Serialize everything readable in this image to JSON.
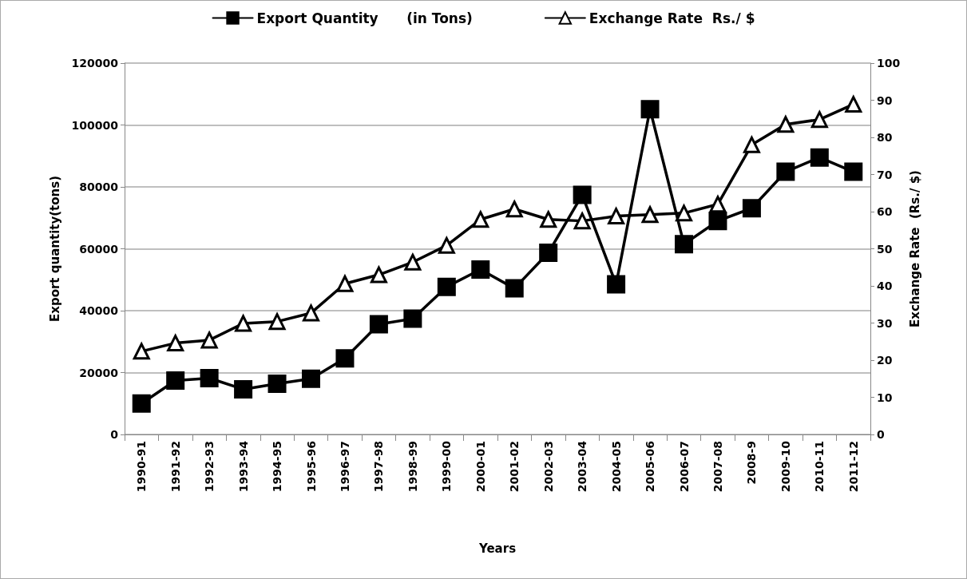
{
  "chart_data": {
    "type": "line",
    "xlabel": "Years",
    "ylabel": "Export quantity(tons)",
    "y2label": "Exchange Rate  (Rs./ $)",
    "categories": [
      "1990-91",
      "1991-92",
      "1992-93",
      "1993-94",
      "1994-95",
      "1995-96",
      "1996-97",
      "1997-98",
      "1998-99",
      "1999-00",
      "2000-01",
      "2001-02",
      "2002-03",
      "2003-04",
      "2004-05",
      "2005-06",
      "2006-07",
      "2007-08",
      "2008-9",
      "2009-10",
      "2010-11",
      "2011-12"
    ],
    "series": [
      {
        "name": "Export Quantity      (in Tons)",
        "color": "#000000",
        "marker": "square",
        "values": [
          10000,
          17400,
          18200,
          14600,
          16400,
          18000,
          24600,
          35600,
          37400,
          47700,
          53300,
          47200,
          58700,
          77400,
          48500,
          105100,
          61500,
          69000,
          73100,
          84900,
          89500,
          84900
        ]
      },
      {
        "name": "Exchange Rate  Rs./ $",
        "color": "#000000",
        "marker": "triangle",
        "axis": "y2",
        "values": [
          22.4,
          24.6,
          25.4,
          29.9,
          30.4,
          32.7,
          40.6,
          43,
          46.4,
          50.9,
          57.9,
          60.7,
          57.9,
          57.5,
          58.8,
          59.2,
          59.6,
          62,
          78,
          83.5,
          84.8,
          88.9
        ]
      }
    ],
    "ylim": [
      0,
      120000
    ],
    "yticks": [
      0,
      20000,
      40000,
      60000,
      80000,
      100000,
      120000
    ],
    "y2lim": [
      0,
      100
    ],
    "y2ticks": [
      0,
      10,
      20,
      30,
      40,
      50,
      60,
      70,
      80,
      90,
      100
    ],
    "grid": "y",
    "legend": "top",
    "line_style": "solid"
  }
}
